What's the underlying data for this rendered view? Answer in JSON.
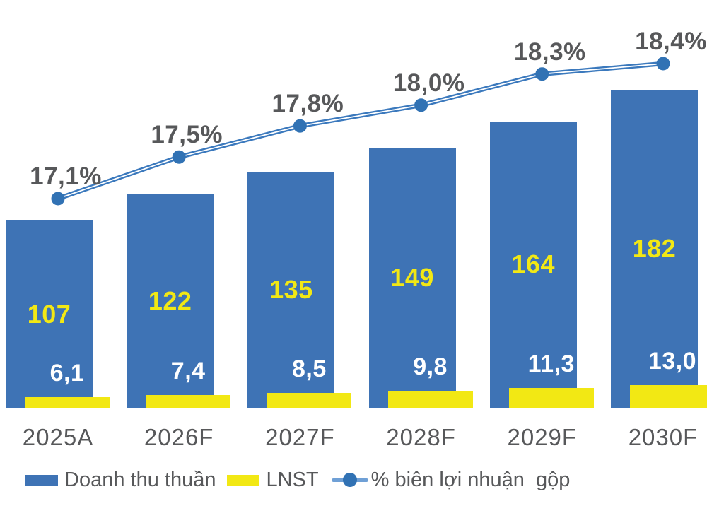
{
  "chart_data": {
    "type": "combo-bar-line",
    "title": "",
    "xlabel": "",
    "ylabel": "",
    "grid": false,
    "axes_hidden": true,
    "legend_position": "bottom",
    "categories": [
      "2025A",
      "2026F",
      "2027F",
      "2028F",
      "2029F",
      "2030F"
    ],
    "value_axis_range": [
      0,
      190
    ],
    "line_axis_range": [
      17.1,
      18.4
    ],
    "series": [
      {
        "name": "Doanh thu thuần",
        "type": "bar",
        "color": "#3e73b5",
        "values": [
          107,
          122,
          135,
          149,
          164,
          182
        ],
        "labels": [
          "107",
          "122",
          "135",
          "149",
          "164",
          "182"
        ],
        "label_color": "#f2e814"
      },
      {
        "name": "LNST",
        "type": "bar",
        "color": "#f2e814",
        "values": [
          6.1,
          7.4,
          8.5,
          9.8,
          11.3,
          13.0
        ],
        "labels": [
          "6,1",
          "7,4",
          "8,5",
          "9,8",
          "11,3",
          "13,0"
        ],
        "label_color": "#ffffff"
      },
      {
        "name": "% biên lợi nhuận  gộp",
        "type": "line",
        "color": "#3b79bd",
        "marker_color": "#3172b4",
        "line_highlight_color": "#ffffff",
        "legend_line_color": "#6fa0d6",
        "values": [
          17.1,
          17.5,
          17.8,
          18.0,
          18.3,
          18.4
        ],
        "labels": [
          "17,1%",
          "17,5%",
          "17,8%",
          "18,0%",
          "18,3%",
          "18,4%"
        ],
        "label_color": "#57585a"
      }
    ]
  }
}
